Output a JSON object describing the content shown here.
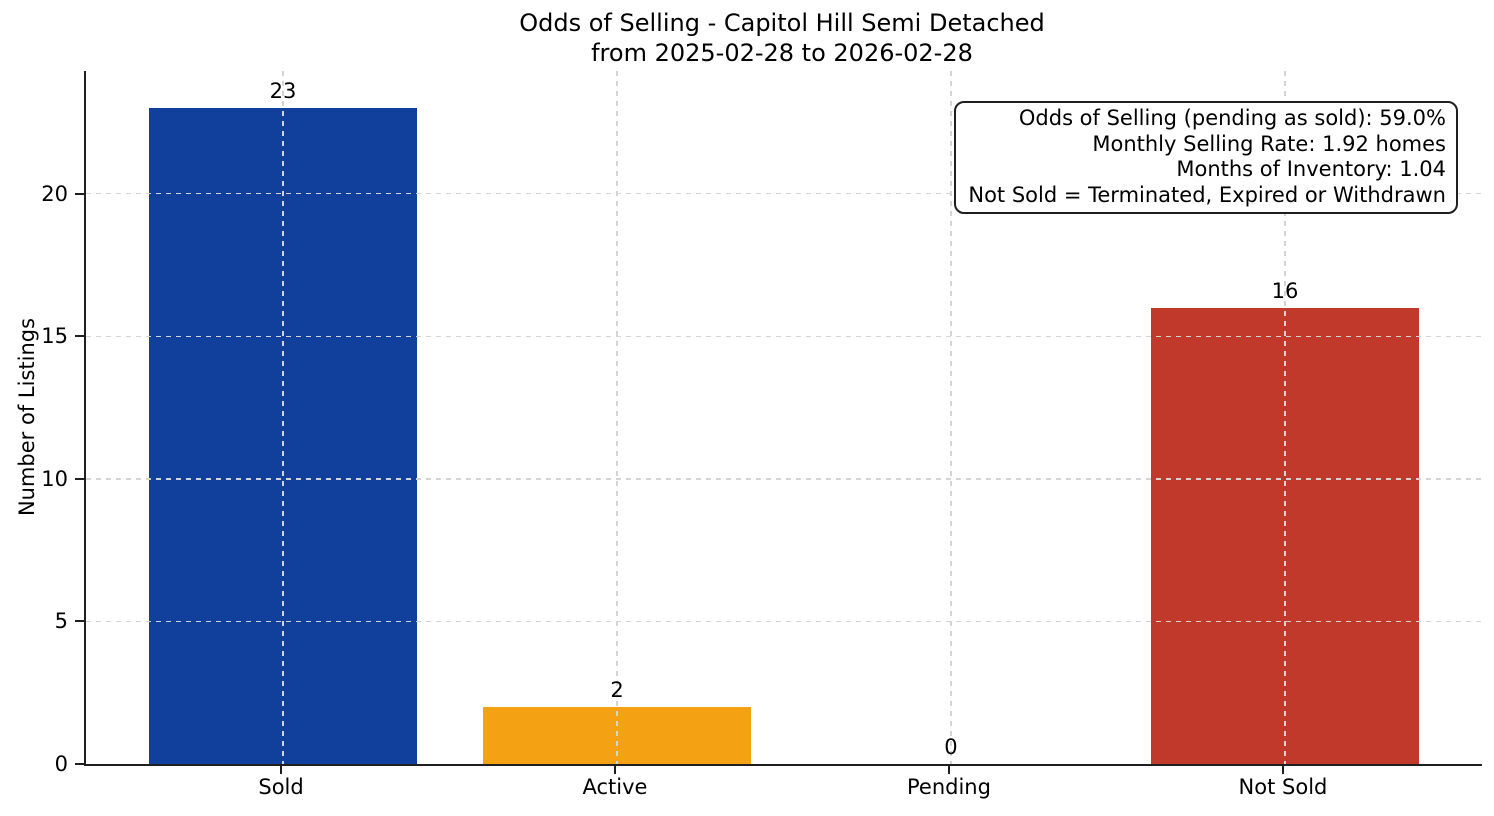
{
  "chart_data": {
    "type": "bar",
    "title": "Odds of Selling - Capitol Hill Semi Detached\nfrom 2025-02-28 to 2026-02-28",
    "title_lines": [
      "Odds of Selling - Capitol Hill Semi Detached",
      "from 2025-02-28 to 2026-02-28"
    ],
    "categories": [
      "Sold",
      "Active",
      "Pending",
      "Not Sold"
    ],
    "values": [
      23,
      2,
      0,
      16
    ],
    "bar_colors": [
      "#10409B",
      "#F4A213",
      null,
      "#C0392B"
    ],
    "xlabel": "",
    "ylabel": "Number of Listings",
    "yticks": [
      0,
      5,
      10,
      15,
      20
    ],
    "ylim": [
      0,
      24.3
    ],
    "xlim": [
      -0.59,
      3.59
    ],
    "bar_width": 0.8,
    "grid": {
      "enabled": true,
      "style": "dashed",
      "axes": "both",
      "color": "#d4d4d4",
      "drawn_over_bars": true
    },
    "legend": null,
    "annotation_box": {
      "position": "top-right",
      "lines": [
        "Odds of Selling (pending as sold): 59.0%",
        "Monthly Selling Rate: 1.92 homes",
        "Months of Inventory: 1.04",
        "Not Sold = Terminated, Expired or Withdrawn"
      ]
    },
    "colors": {
      "axis": "#1f1f1f",
      "text": "#000000",
      "background": "#ffffff"
    }
  }
}
